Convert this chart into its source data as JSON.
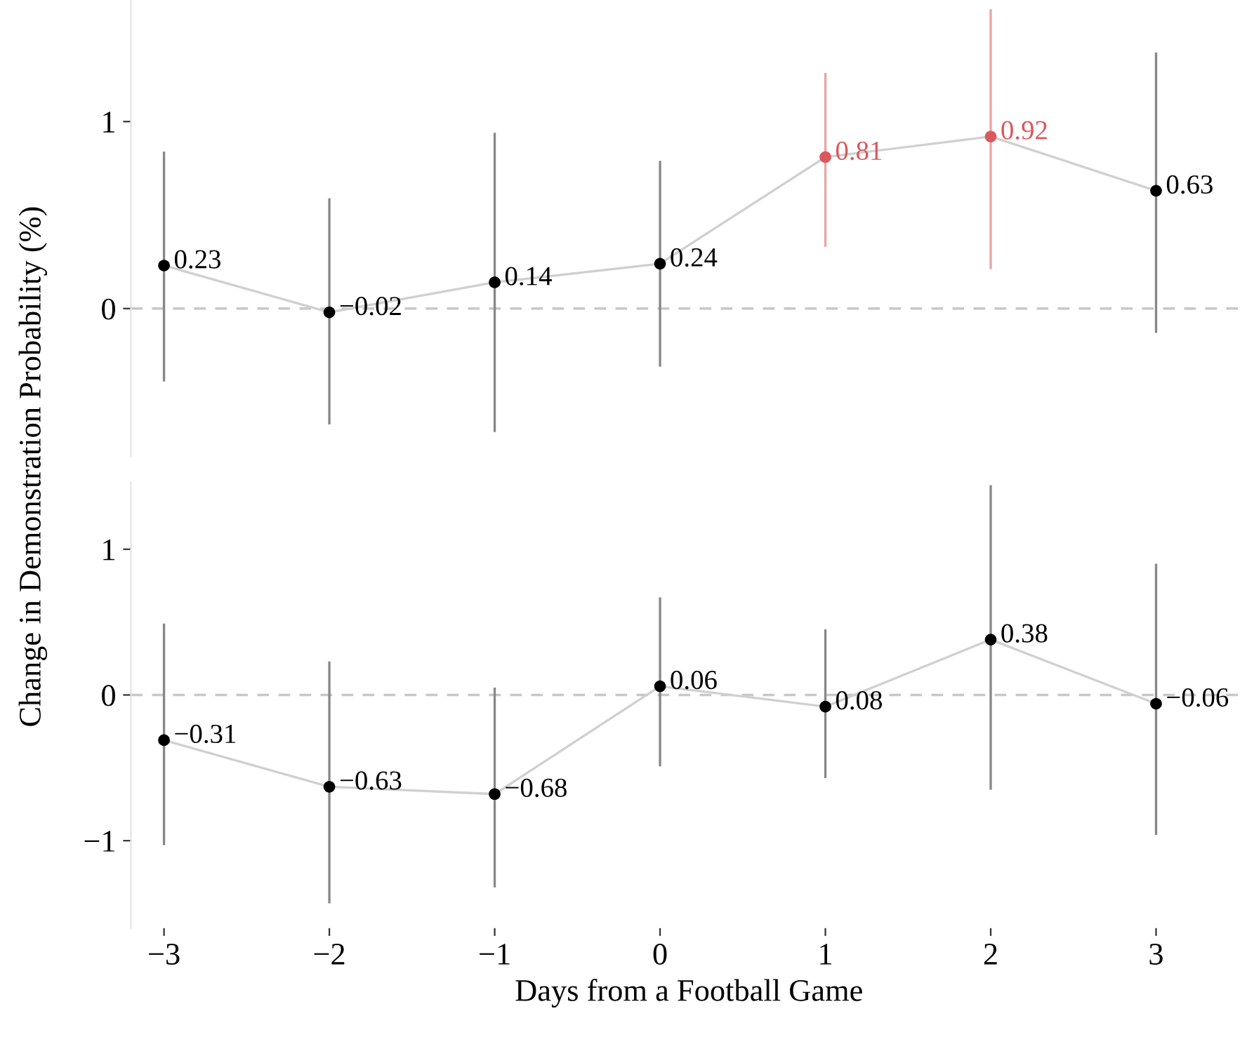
{
  "chart_data": [
    {
      "type": "scatter",
      "ylabel": "Change in Demonstration Probability (%)",
      "x": [
        -3,
        -2,
        -1,
        0,
        1,
        2,
        3
      ],
      "xlim": [
        -3.2,
        3.55
      ],
      "ylim": [
        -0.79,
        1.65
      ],
      "yticks": [
        0,
        1
      ],
      "tick_labels": "y",
      "grid": false,
      "marker": "circle",
      "series": [
        {
          "color": "#000000",
          "colors": [
            "#000000",
            "#000000",
            "#000000",
            "#000000",
            "#d9595c",
            "#d9595c",
            "#000000"
          ],
          "values": [
            0.23,
            -0.02,
            0.14,
            0.24,
            0.81,
            0.92,
            0.63
          ],
          "value_labels": [
            "0.23",
            "−0.02",
            "0.14",
            "0.24",
            "0.81",
            "0.92",
            "0.63"
          ],
          "errors": [
            [
              -0.39,
              0.84
            ],
            [
              -0.62,
              0.59
            ],
            [
              -0.66,
              0.94
            ],
            [
              -0.31,
              0.79
            ],
            [
              0.33,
              1.26
            ],
            [
              0.21,
              1.6
            ],
            [
              -0.13,
              1.37
            ]
          ]
        }
      ],
      "ref_lines": [
        {
          "axis": "y",
          "value": 0,
          "color": "#c8c8c8",
          "line_style": "dashed"
        }
      ]
    },
    {
      "type": "scatter",
      "xlabel": "Days from a Football Game",
      "x": [
        -3,
        -2,
        -1,
        0,
        1,
        2,
        3
      ],
      "xlim": [
        -3.2,
        3.55
      ],
      "xticks": [
        {
          "value": -3,
          "label": "−3"
        },
        {
          "value": -2,
          "label": "−2"
        },
        {
          "value": -1,
          "label": "−1"
        },
        0,
        1,
        2,
        3
      ],
      "ylim": [
        -1.6,
        1.46
      ],
      "yticks": [
        {
          "value": -1,
          "label": "−1"
        },
        0,
        1
      ],
      "grid": false,
      "marker": "circle",
      "series": [
        {
          "color": "#000000",
          "values": [
            -0.31,
            -0.63,
            -0.68,
            0.06,
            -0.08,
            0.38,
            -0.06
          ],
          "value_labels": [
            "−0.31",
            "−0.63",
            "−0.68",
            "0.06",
            null,
            "0.38",
            "−0.06"
          ],
          "errors": [
            [
              -1.03,
              0.49
            ],
            [
              -1.43,
              0.23
            ],
            [
              -1.32,
              0.05
            ],
            [
              -0.49,
              0.67
            ],
            [
              -0.57,
              0.45
            ],
            [
              -0.65,
              1.44
            ],
            [
              -0.96,
              0.9
            ]
          ]
        }
      ],
      "ref_lines": [
        {
          "axis": "y",
          "value": 0,
          "color": "#c8c8c8",
          "line_style": "dashed"
        }
      ],
      "annotations": [
        {
          "text": "0.08",
          "x": 1,
          "y": -0.08
        }
      ]
    }
  ]
}
